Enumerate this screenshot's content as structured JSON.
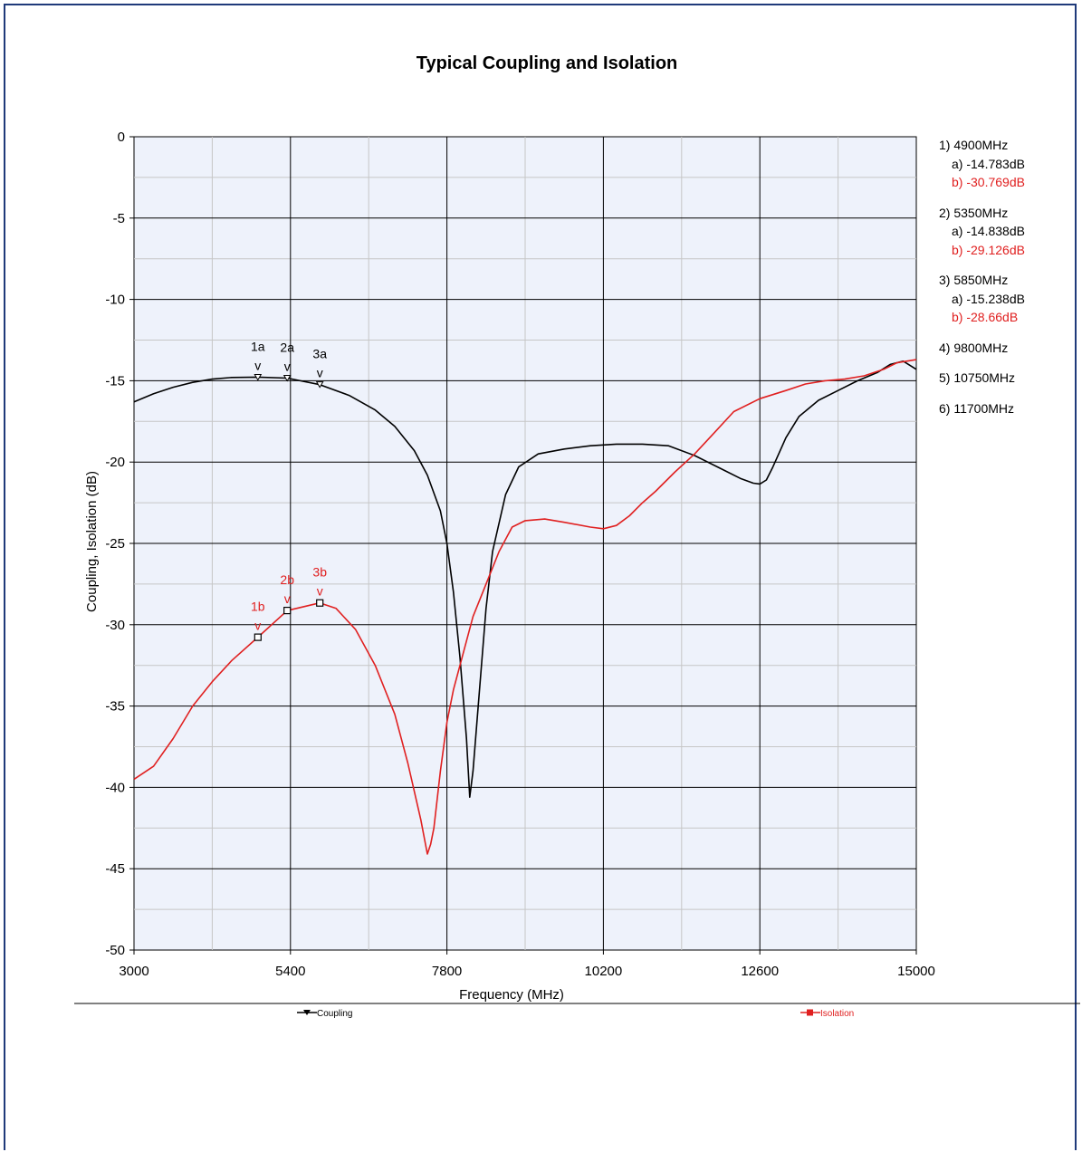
{
  "chart_data": {
    "type": "line",
    "title": "Typical Coupling and Isolation",
    "xlabel": "Frequency (MHz)",
    "ylabel": "Coupling, Isolation (dB)",
    "xlim": [
      3000,
      15000
    ],
    "ylim": [
      -50,
      0
    ],
    "x_ticks": [
      3000,
      5400,
      7800,
      10200,
      12600,
      15000
    ],
    "x_tick_labels": [
      "3000",
      "5400",
      "7800",
      "10200",
      "12600",
      "15000"
    ],
    "y_ticks": [
      0,
      -5,
      -10,
      -15,
      -20,
      -25,
      -30,
      -35,
      -40,
      -45,
      -50
    ],
    "y_tick_labels": [
      "0",
      "-5",
      "-10",
      "-15",
      "-20",
      "-25",
      "-30",
      "-35",
      "-40",
      "-45",
      "-50"
    ],
    "x_minor_step": 1200,
    "y_minor_step": 2.5,
    "grid": true,
    "background": "#eef2fb",
    "series": [
      {
        "name": "Coupling",
        "color": "#000000",
        "x": [
          3000,
          3300,
          3600,
          3900,
          4200,
          4500,
          4900,
          5350,
          5850,
          6300,
          6700,
          7000,
          7300,
          7500,
          7700,
          7800,
          7900,
          8000,
          8100,
          8150,
          8200,
          8300,
          8400,
          8500,
          8700,
          8900,
          9200,
          9600,
          10000,
          10400,
          10800,
          11200,
          11600,
          12000,
          12300,
          12500,
          12600,
          12700,
          12800,
          13000,
          13200,
          13500,
          13800,
          14100,
          14400,
          14600,
          14800,
          15000
        ],
        "y": [
          -16.3,
          -15.8,
          -15.4,
          -15.1,
          -14.9,
          -14.8,
          -14.78,
          -14.84,
          -15.24,
          -15.9,
          -16.8,
          -17.8,
          -19.3,
          -20.8,
          -23.0,
          -25.0,
          -28.0,
          -32.0,
          -37.0,
          -40.6,
          -39.0,
          -34.0,
          -29.0,
          -25.5,
          -22.0,
          -20.3,
          -19.5,
          -19.2,
          -19.0,
          -18.9,
          -18.9,
          -19.0,
          -19.6,
          -20.4,
          -21.0,
          -21.3,
          -21.35,
          -21.1,
          -20.3,
          -18.5,
          -17.2,
          -16.2,
          -15.6,
          -15.0,
          -14.5,
          -14.0,
          -13.8,
          -14.3
        ]
      },
      {
        "name": "Isolation",
        "color": "#e02020",
        "x": [
          3000,
          3300,
          3600,
          3900,
          4200,
          4500,
          4900,
          5350,
          5850,
          6100,
          6400,
          6700,
          7000,
          7200,
          7400,
          7500,
          7550,
          7600,
          7700,
          7800,
          7900,
          8000,
          8200,
          8400,
          8600,
          8800,
          9000,
          9300,
          9600,
          10000,
          10200,
          10400,
          10600,
          10800,
          11000,
          11300,
          11600,
          11900,
          12200,
          12600,
          13000,
          13300,
          13600,
          13900,
          14200,
          14500,
          14700,
          15000
        ],
        "y": [
          -39.5,
          -38.7,
          -37.0,
          -35.0,
          -33.5,
          -32.2,
          -30.77,
          -29.13,
          -28.66,
          -29.0,
          -30.3,
          -32.5,
          -35.5,
          -38.5,
          -42.0,
          -44.1,
          -43.5,
          -42.5,
          -39.0,
          -36.0,
          -34.0,
          -32.5,
          -29.5,
          -27.5,
          -25.5,
          -24.0,
          -23.6,
          -23.5,
          -23.7,
          -24.0,
          -24.1,
          -23.9,
          -23.3,
          -22.5,
          -21.8,
          -20.6,
          -19.5,
          -18.2,
          -16.9,
          -16.1,
          -15.6,
          -15.2,
          -15.0,
          -14.9,
          -14.7,
          -14.3,
          -13.9,
          -13.7
        ]
      }
    ],
    "point_markers": [
      {
        "series": "Coupling",
        "label": "1a",
        "caret": "v",
        "x": 4900,
        "y": -14.783
      },
      {
        "series": "Coupling",
        "label": "2a",
        "caret": "v",
        "x": 5350,
        "y": -14.838
      },
      {
        "series": "Coupling",
        "label": "3a",
        "caret": "v",
        "x": 5850,
        "y": -15.238
      },
      {
        "series": "Isolation",
        "label": "1b",
        "caret": "v",
        "x": 4900,
        "y": -30.769
      },
      {
        "series": "Isolation",
        "label": "2b",
        "caret": "v",
        "x": 5350,
        "y": -29.126
      },
      {
        "series": "Isolation",
        "label": "3b",
        "caret": "v",
        "x": 5850,
        "y": -28.66
      }
    ],
    "marker_readout": [
      {
        "freq": "1) 4900MHz",
        "a": "a) -14.783dB",
        "b": "b) -30.769dB"
      },
      {
        "freq": "2) 5350MHz",
        "a": "a) -14.838dB",
        "b": "b) -29.126dB"
      },
      {
        "freq": "3) 5850MHz",
        "a": "a) -15.238dB",
        "b": "b) -28.66dB"
      },
      {
        "freq": "4) 9800MHz"
      },
      {
        "freq": "5) 10750MHz"
      },
      {
        "freq": "6) 11700MHz"
      }
    ],
    "legend": [
      {
        "name": "Coupling",
        "color": "#000000"
      },
      {
        "name": "Isolation",
        "color": "#e02020"
      }
    ],
    "legend_position": "bottom"
  }
}
